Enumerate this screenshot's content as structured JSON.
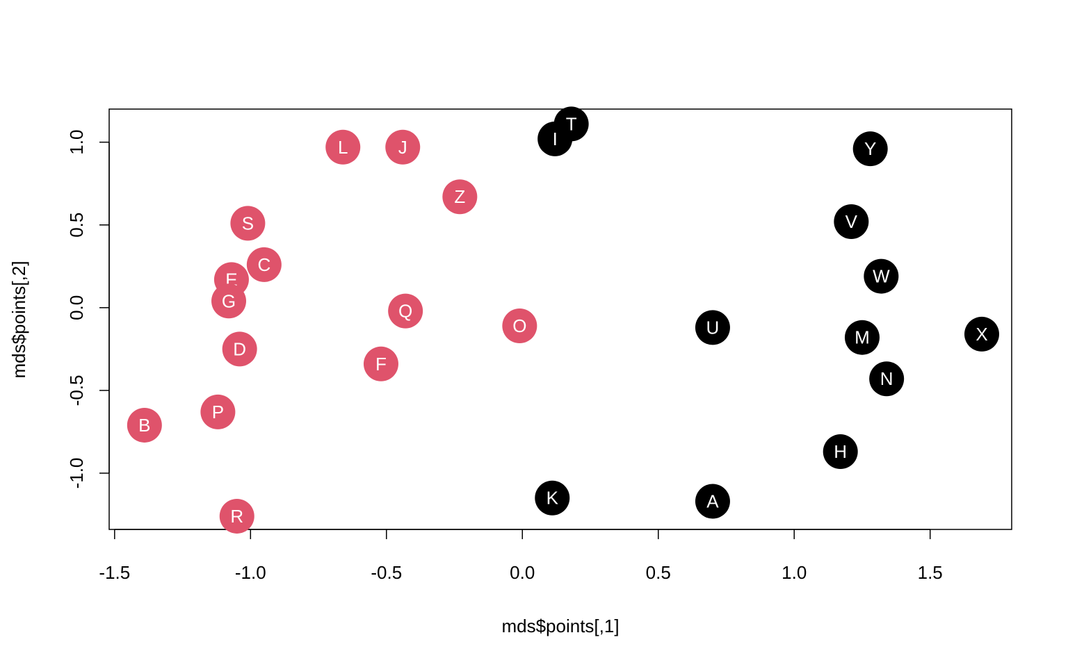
{
  "chart_data": {
    "type": "scatter",
    "title": "",
    "xlabel": "mds$points[,1]",
    "ylabel": "mds$points[,2]",
    "xlim": [
      -1.52,
      1.8
    ],
    "ylim": [
      -1.34,
      1.2
    ],
    "xticks": [
      -1.5,
      -1.0,
      -0.5,
      0.0,
      0.5,
      1.0,
      1.5
    ],
    "xtick_labels": [
      "-1.5",
      "-1.0",
      "-0.5",
      "0.0",
      "0.5",
      "1.0",
      "1.5"
    ],
    "yticks": [
      -1.0,
      -0.5,
      0.0,
      0.5,
      1.0
    ],
    "ytick_labels": [
      "-1.0",
      "-0.5",
      "0.0",
      "0.5",
      "1.0"
    ],
    "grid": false,
    "legend": "none",
    "colors": {
      "red": "#DF536B",
      "black": "#000000"
    },
    "points": [
      {
        "label": "L",
        "x": -0.66,
        "y": 0.97,
        "group": "red"
      },
      {
        "label": "J",
        "x": -0.44,
        "y": 0.97,
        "group": "red"
      },
      {
        "label": "Z",
        "x": -0.23,
        "y": 0.67,
        "group": "red"
      },
      {
        "label": "S",
        "x": -1.01,
        "y": 0.51,
        "group": "red"
      },
      {
        "label": "C",
        "x": -0.95,
        "y": 0.26,
        "group": "red"
      },
      {
        "label": "E",
        "x": -1.07,
        "y": 0.17,
        "group": "red"
      },
      {
        "label": "G",
        "x": -1.08,
        "y": 0.04,
        "group": "red"
      },
      {
        "label": "Q",
        "x": -0.43,
        "y": -0.02,
        "group": "red"
      },
      {
        "label": "O",
        "x": -0.01,
        "y": -0.11,
        "group": "red"
      },
      {
        "label": "D",
        "x": -1.04,
        "y": -0.25,
        "group": "red"
      },
      {
        "label": "F",
        "x": -0.52,
        "y": -0.34,
        "group": "red"
      },
      {
        "label": "P",
        "x": -1.12,
        "y": -0.63,
        "group": "red"
      },
      {
        "label": "B",
        "x": -1.39,
        "y": -0.71,
        "group": "red"
      },
      {
        "label": "R",
        "x": -1.05,
        "y": -1.26,
        "group": "red"
      },
      {
        "label": "T",
        "x": 0.18,
        "y": 1.11,
        "group": "black"
      },
      {
        "label": "I",
        "x": 0.12,
        "y": 1.02,
        "group": "black"
      },
      {
        "label": "Y",
        "x": 1.28,
        "y": 0.96,
        "group": "black"
      },
      {
        "label": "V",
        "x": 1.21,
        "y": 0.52,
        "group": "black"
      },
      {
        "label": "W",
        "x": 1.32,
        "y": 0.19,
        "group": "black"
      },
      {
        "label": "U",
        "x": 0.7,
        "y": -0.12,
        "group": "black"
      },
      {
        "label": "X",
        "x": 1.69,
        "y": -0.16,
        "group": "black"
      },
      {
        "label": "M",
        "x": 1.25,
        "y": -0.18,
        "group": "black"
      },
      {
        "label": "N",
        "x": 1.34,
        "y": -0.43,
        "group": "black"
      },
      {
        "label": "H",
        "x": 1.17,
        "y": -0.87,
        "group": "black"
      },
      {
        "label": "K",
        "x": 0.11,
        "y": -1.15,
        "group": "black"
      },
      {
        "label": "A",
        "x": 0.7,
        "y": -1.17,
        "group": "black"
      }
    ]
  }
}
